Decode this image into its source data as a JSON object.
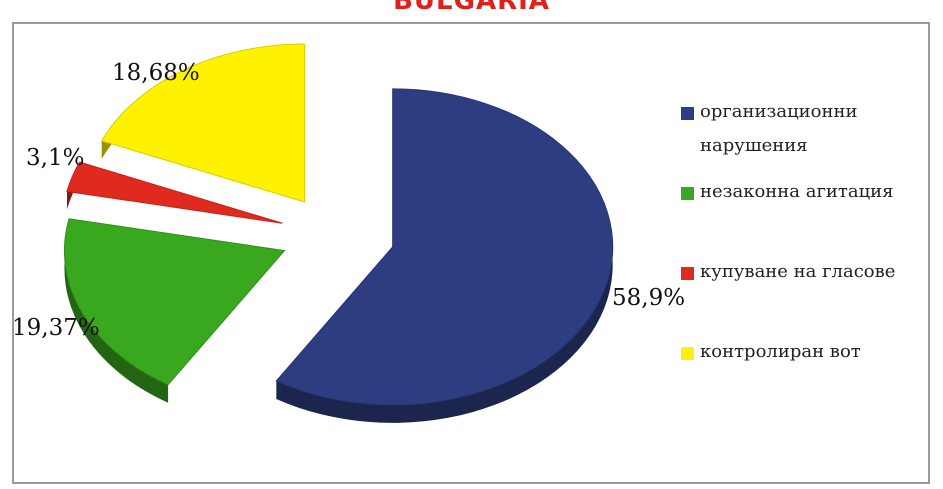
{
  "chart_data": {
    "type": "pie",
    "title": "BULGARIA",
    "title_color": "#e0201a",
    "slices": [
      {
        "name": "организационни нарушения",
        "value": 58.9,
        "label": "58,9%",
        "color": "#2e3d82"
      },
      {
        "name": "незаконна агитация",
        "value": 19.37,
        "label": "19,37%",
        "color": "#3aa81e"
      },
      {
        "name": "купуване на гласове",
        "value": 3.1,
        "label": "3,1%",
        "color": "#e02a1e"
      },
      {
        "name": "контролиран вот",
        "value": 18.68,
        "label": "18,68%",
        "color": "#fff200"
      }
    ],
    "legend_position": "right",
    "style": "3D exploded pie"
  }
}
